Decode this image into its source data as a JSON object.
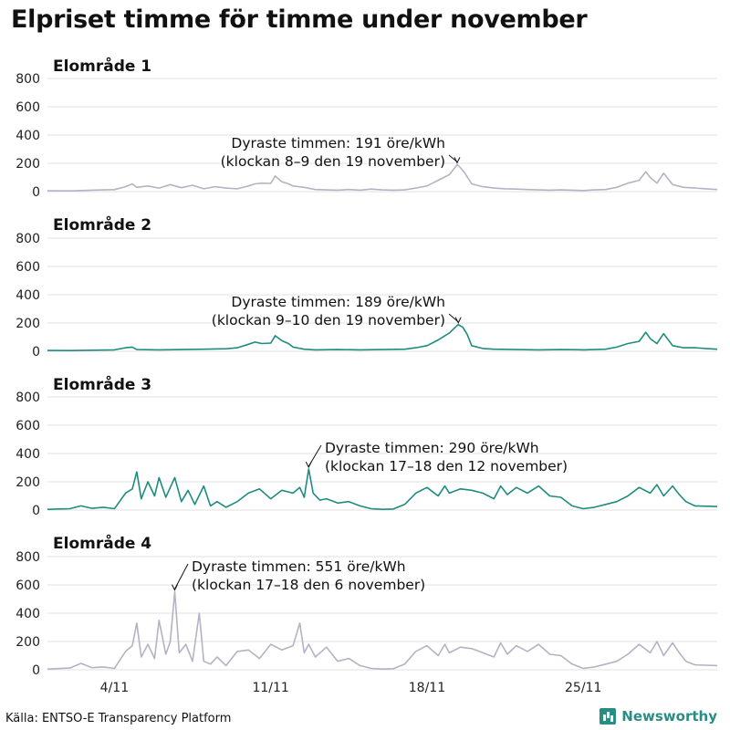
{
  "title": "Elpriset timme för timme under november",
  "source": "Källa: ENTSO-E Transparency Platform",
  "brand": {
    "name": "Newsworthy",
    "icon": "bar-chart-logo-icon",
    "color": "#2a8d84"
  },
  "chart_data": [
    {
      "type": "line",
      "title": "Elområde 1",
      "color": "#b3b3c4",
      "ylim": [
        0,
        800
      ],
      "yticks": [
        0,
        200,
        400,
        600,
        800
      ],
      "xlim": [
        1,
        31
      ],
      "xticks": [
        {
          "x": 4,
          "label": "4/11"
        },
        {
          "x": 11,
          "label": "11/11"
        },
        {
          "x": 18,
          "label": "18/11"
        },
        {
          "x": 25,
          "label": "25/11"
        }
      ],
      "grid": true,
      "annotation": {
        "x": 19.35,
        "y": 191,
        "line1": "Dyraste timmen: 191 öre/kWh",
        "line2": "(klockan 8–9 den 19 november)"
      },
      "points": [
        [
          1,
          6
        ],
        [
          2,
          5
        ],
        [
          3,
          10
        ],
        [
          3.5,
          12
        ],
        [
          4,
          14
        ],
        [
          4.5,
          35
        ],
        [
          4.8,
          55
        ],
        [
          5,
          30
        ],
        [
          5.5,
          40
        ],
        [
          6,
          25
        ],
        [
          6.5,
          50
        ],
        [
          7,
          28
        ],
        [
          7.5,
          45
        ],
        [
          8,
          20
        ],
        [
          8.5,
          35
        ],
        [
          9,
          25
        ],
        [
          9.5,
          20
        ],
        [
          10,
          40
        ],
        [
          10.3,
          55
        ],
        [
          10.6,
          60
        ],
        [
          11,
          58
        ],
        [
          11.2,
          110
        ],
        [
          11.5,
          70
        ],
        [
          11.8,
          55
        ],
        [
          12,
          40
        ],
        [
          12.5,
          30
        ],
        [
          13,
          15
        ],
        [
          13.5,
          12
        ],
        [
          14,
          10
        ],
        [
          14.5,
          15
        ],
        [
          15,
          10
        ],
        [
          15.5,
          18
        ],
        [
          16,
          12
        ],
        [
          16.5,
          10
        ],
        [
          17,
          12
        ],
        [
          17.5,
          25
        ],
        [
          18,
          40
        ],
        [
          18.5,
          80
        ],
        [
          19,
          120
        ],
        [
          19.2,
          160
        ],
        [
          19.35,
          191
        ],
        [
          19.5,
          170
        ],
        [
          19.7,
          130
        ],
        [
          20,
          55
        ],
        [
          20.5,
          35
        ],
        [
          21,
          25
        ],
        [
          21.5,
          20
        ],
        [
          22,
          18
        ],
        [
          22.5,
          15
        ],
        [
          23,
          12
        ],
        [
          23.5,
          10
        ],
        [
          24,
          12
        ],
        [
          24.5,
          10
        ],
        [
          25,
          8
        ],
        [
          25.5,
          12
        ],
        [
          26,
          15
        ],
        [
          26.5,
          30
        ],
        [
          27,
          60
        ],
        [
          27.5,
          80
        ],
        [
          27.8,
          140
        ],
        [
          28,
          100
        ],
        [
          28.3,
          60
        ],
        [
          28.6,
          130
        ],
        [
          29,
          50
        ],
        [
          29.5,
          30
        ],
        [
          30,
          25
        ],
        [
          30.5,
          20
        ],
        [
          31,
          15
        ]
      ]
    },
    {
      "type": "line",
      "title": "Elområde 2",
      "color": "#1e8c7e",
      "ylim": [
        0,
        800
      ],
      "yticks": [
        0,
        200,
        400,
        600,
        800
      ],
      "xlim": [
        1,
        31
      ],
      "xticks": [
        {
          "x": 4,
          "label": "4/11"
        },
        {
          "x": 11,
          "label": "11/11"
        },
        {
          "x": 18,
          "label": "18/11"
        },
        {
          "x": 25,
          "label": "25/11"
        }
      ],
      "grid": true,
      "annotation": {
        "x": 19.4,
        "y": 189,
        "line1": "Dyraste timmen: 189 öre/kWh",
        "line2": "(klockan 9–10 den 19 november)"
      },
      "points": [
        [
          1,
          6
        ],
        [
          2,
          5
        ],
        [
          3,
          8
        ],
        [
          4,
          10
        ],
        [
          4.5,
          25
        ],
        [
          4.8,
          30
        ],
        [
          5,
          12
        ],
        [
          6,
          10
        ],
        [
          7,
          12
        ],
        [
          8,
          15
        ],
        [
          9,
          18
        ],
        [
          9.5,
          25
        ],
        [
          10,
          50
        ],
        [
          10.3,
          65
        ],
        [
          10.6,
          55
        ],
        [
          11,
          58
        ],
        [
          11.2,
          110
        ],
        [
          11.5,
          75
        ],
        [
          11.8,
          55
        ],
        [
          12,
          30
        ],
        [
          12.5,
          15
        ],
        [
          13,
          10
        ],
        [
          14,
          12
        ],
        [
          15,
          10
        ],
        [
          16,
          12
        ],
        [
          17,
          15
        ],
        [
          17.5,
          25
        ],
        [
          18,
          40
        ],
        [
          18.5,
          80
        ],
        [
          19,
          130
        ],
        [
          19.2,
          160
        ],
        [
          19.4,
          189
        ],
        [
          19.6,
          170
        ],
        [
          19.8,
          120
        ],
        [
          20,
          40
        ],
        [
          20.5,
          20
        ],
        [
          21,
          15
        ],
        [
          22,
          12
        ],
        [
          23,
          10
        ],
        [
          24,
          12
        ],
        [
          25,
          10
        ],
        [
          26,
          15
        ],
        [
          26.5,
          30
        ],
        [
          27,
          55
        ],
        [
          27.5,
          70
        ],
        [
          27.8,
          135
        ],
        [
          28,
          90
        ],
        [
          28.3,
          55
        ],
        [
          28.6,
          125
        ],
        [
          29,
          40
        ],
        [
          29.5,
          25
        ],
        [
          30,
          25
        ],
        [
          30.5,
          20
        ],
        [
          31,
          15
        ]
      ]
    },
    {
      "type": "line",
      "title": "Elområde 3",
      "color": "#1e8c7e",
      "ylim": [
        0,
        800
      ],
      "yticks": [
        0,
        200,
        400,
        600,
        800
      ],
      "xlim": [
        1,
        31
      ],
      "xticks": [
        {
          "x": 4,
          "label": "4/11"
        },
        {
          "x": 11,
          "label": "11/11"
        },
        {
          "x": 18,
          "label": "18/11"
        },
        {
          "x": 25,
          "label": "25/11"
        }
      ],
      "grid": true,
      "annotation": {
        "x": 12.7,
        "y": 290,
        "line1": "Dyraste timmen: 290 öre/kWh",
        "line2": "(klockan 17–18 den 12 november)"
      },
      "points": [
        [
          1,
          5
        ],
        [
          2,
          10
        ],
        [
          2.5,
          30
        ],
        [
          3,
          12
        ],
        [
          3.5,
          20
        ],
        [
          4,
          10
        ],
        [
          4.5,
          120
        ],
        [
          4.8,
          150
        ],
        [
          5,
          270
        ],
        [
          5.2,
          80
        ],
        [
          5.5,
          200
        ],
        [
          5.8,
          100
        ],
        [
          6,
          230
        ],
        [
          6.3,
          90
        ],
        [
          6.5,
          160
        ],
        [
          6.7,
          230
        ],
        [
          7,
          60
        ],
        [
          7.3,
          140
        ],
        [
          7.6,
          40
        ],
        [
          8,
          170
        ],
        [
          8.3,
          30
        ],
        [
          8.6,
          60
        ],
        [
          9,
          20
        ],
        [
          9.5,
          60
        ],
        [
          10,
          120
        ],
        [
          10.5,
          150
        ],
        [
          11,
          80
        ],
        [
          11.5,
          140
        ],
        [
          12,
          120
        ],
        [
          12.3,
          160
        ],
        [
          12.5,
          90
        ],
        [
          12.7,
          290
        ],
        [
          12.9,
          120
        ],
        [
          13.2,
          70
        ],
        [
          13.5,
          80
        ],
        [
          14,
          50
        ],
        [
          14.5,
          60
        ],
        [
          15,
          30
        ],
        [
          15.5,
          10
        ],
        [
          16,
          5
        ],
        [
          16.5,
          8
        ],
        [
          17,
          40
        ],
        [
          17.5,
          120
        ],
        [
          18,
          160
        ],
        [
          18.5,
          100
        ],
        [
          18.8,
          170
        ],
        [
          19,
          120
        ],
        [
          19.5,
          150
        ],
        [
          20,
          140
        ],
        [
          20.5,
          120
        ],
        [
          21,
          80
        ],
        [
          21.3,
          170
        ],
        [
          21.6,
          110
        ],
        [
          22,
          160
        ],
        [
          22.5,
          120
        ],
        [
          23,
          170
        ],
        [
          23.5,
          100
        ],
        [
          24,
          90
        ],
        [
          24.5,
          30
        ],
        [
          25,
          10
        ],
        [
          25.5,
          20
        ],
        [
          26,
          40
        ],
        [
          26.5,
          60
        ],
        [
          27,
          100
        ],
        [
          27.5,
          160
        ],
        [
          28,
          120
        ],
        [
          28.3,
          180
        ],
        [
          28.6,
          100
        ],
        [
          29,
          170
        ],
        [
          29.3,
          110
        ],
        [
          29.6,
          60
        ],
        [
          30,
          30
        ],
        [
          31,
          25
        ]
      ]
    },
    {
      "type": "line",
      "title": "Elområde 4",
      "color": "#b3b3c4",
      "ylim": [
        0,
        800
      ],
      "yticks": [
        0,
        200,
        400,
        600,
        800
      ],
      "xlim": [
        1,
        31
      ],
      "xticks": [
        {
          "x": 4,
          "label": "4/11"
        },
        {
          "x": 11,
          "label": "11/11"
        },
        {
          "x": 18,
          "label": "18/11"
        },
        {
          "x": 25,
          "label": "25/11"
        }
      ],
      "grid": true,
      "annotation": {
        "x": 6.7,
        "y": 551,
        "line1": "Dyraste timmen: 551 öre/kWh",
        "line2": "(klockan 17–18 den 6 november)"
      },
      "points": [
        [
          1,
          5
        ],
        [
          2,
          12
        ],
        [
          2.5,
          45
        ],
        [
          3,
          15
        ],
        [
          3.5,
          20
        ],
        [
          4,
          10
        ],
        [
          4.5,
          130
        ],
        [
          4.8,
          170
        ],
        [
          5,
          330
        ],
        [
          5.2,
          90
        ],
        [
          5.5,
          180
        ],
        [
          5.8,
          80
        ],
        [
          6,
          350
        ],
        [
          6.3,
          110
        ],
        [
          6.5,
          200
        ],
        [
          6.7,
          551
        ],
        [
          6.9,
          120
        ],
        [
          7.2,
          180
        ],
        [
          7.5,
          60
        ],
        [
          7.8,
          400
        ],
        [
          8,
          60
        ],
        [
          8.3,
          40
        ],
        [
          8.6,
          90
        ],
        [
          9,
          30
        ],
        [
          9.5,
          130
        ],
        [
          10,
          140
        ],
        [
          10.5,
          80
        ],
        [
          11,
          180
        ],
        [
          11.5,
          140
        ],
        [
          12,
          170
        ],
        [
          12.3,
          330
        ],
        [
          12.5,
          120
        ],
        [
          12.7,
          180
        ],
        [
          13,
          90
        ],
        [
          13.5,
          160
        ],
        [
          14,
          60
        ],
        [
          14.5,
          80
        ],
        [
          15,
          30
        ],
        [
          15.5,
          10
        ],
        [
          16,
          5
        ],
        [
          16.5,
          8
        ],
        [
          17,
          40
        ],
        [
          17.5,
          130
        ],
        [
          18,
          170
        ],
        [
          18.5,
          100
        ],
        [
          18.8,
          180
        ],
        [
          19,
          120
        ],
        [
          19.5,
          160
        ],
        [
          20,
          150
        ],
        [
          20.5,
          120
        ],
        [
          21,
          90
        ],
        [
          21.3,
          190
        ],
        [
          21.6,
          110
        ],
        [
          22,
          170
        ],
        [
          22.5,
          130
        ],
        [
          23,
          180
        ],
        [
          23.5,
          110
        ],
        [
          24,
          100
        ],
        [
          24.5,
          40
        ],
        [
          25,
          10
        ],
        [
          25.5,
          20
        ],
        [
          26,
          40
        ],
        [
          26.5,
          60
        ],
        [
          27,
          110
        ],
        [
          27.5,
          180
        ],
        [
          28,
          120
        ],
        [
          28.3,
          200
        ],
        [
          28.6,
          100
        ],
        [
          29,
          190
        ],
        [
          29.3,
          120
        ],
        [
          29.6,
          60
        ],
        [
          30,
          35
        ],
        [
          31,
          30
        ]
      ]
    }
  ]
}
